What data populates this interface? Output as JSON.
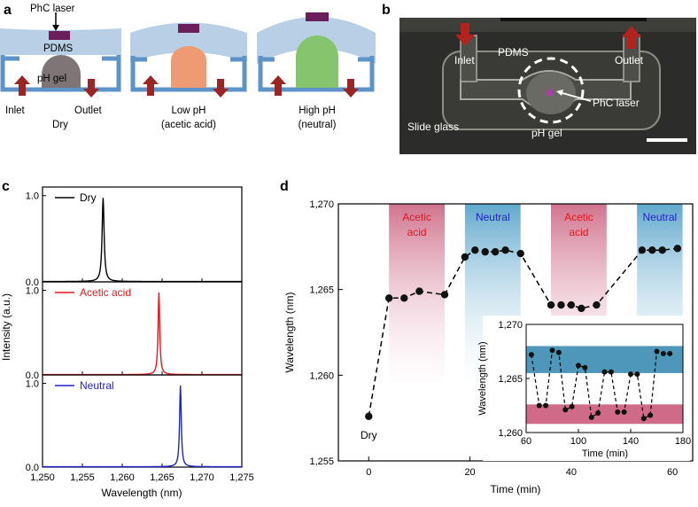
{
  "figure": {
    "panel_a": {
      "letter": "a",
      "labels": {
        "laser": "PhC laser",
        "pdms": "PDMS",
        "gel": "pH gel",
        "inlet": "Inlet",
        "outlet": "Outlet"
      },
      "states": [
        {
          "line1": "Dry",
          "line2": ""
        },
        {
          "line1": "Low pH",
          "line2": "(acetic acid)"
        },
        {
          "line1": "High pH",
          "line2": "(neutral)"
        }
      ],
      "colors": {
        "pdms": "#b9cfe6",
        "frame": "#5e93c9",
        "gel_dry": "#7f7577",
        "gel_low": "#ee9a72",
        "gel_high": "#86c46d",
        "laser": "#6a1f5c",
        "arrow": "#9b2424"
      }
    },
    "panel_b": {
      "letter": "b",
      "labels": {
        "inlet": "Inlet",
        "pdms": "PDMS",
        "outlet": "Outlet",
        "laser": "PhC laser",
        "slide": "Slide glass",
        "gel": "pH gel"
      }
    },
    "panel_c": {
      "letter": "c"
    },
    "panel_d": {
      "letter": "d"
    }
  },
  "chart_data": [
    {
      "type": "line",
      "panel": "c",
      "xlabel": "Wavelength (nm)",
      "ylabel": "Intensity (a.u.)",
      "xlim": [
        1250,
        1275
      ],
      "xticks": [
        1250,
        1255,
        1260,
        1265,
        1270,
        1275
      ],
      "xtick_labels": [
        "1,250",
        "1,255",
        "1,260",
        "1,265",
        "1,270",
        "1,275"
      ],
      "ytick_labels": [
        "0.0",
        "1.0"
      ],
      "subplots": [
        {
          "name": "Dry",
          "color": "#000000",
          "peak": 1257.6,
          "fwhm": 0.3,
          "ylim": [
            0,
            1.1
          ]
        },
        {
          "name": "Acetic acid",
          "color": "#e8161b",
          "peak": 1264.6,
          "fwhm": 0.25,
          "ylim": [
            0,
            1.1
          ]
        },
        {
          "name": "Neutral",
          "color": "#1f23c6",
          "peak": 1267.3,
          "fwhm": 0.25,
          "ylim": [
            0,
            1.1
          ]
        }
      ]
    },
    {
      "type": "line",
      "panel": "d",
      "xlabel": "Time (min)",
      "ylabel": "Wavelength (nm)",
      "xlim": [
        -6,
        64
      ],
      "ylim": [
        1255,
        1270
      ],
      "xticks": [
        0,
        20,
        40,
        60
      ],
      "xtick_labels": [
        "0",
        "20",
        "40",
        "60"
      ],
      "yticks": [
        1255,
        1260,
        1265,
        1270
      ],
      "ytick_labels": [
        "1,255",
        "1,260",
        "1,265",
        "1,270"
      ],
      "annotation": "Dry",
      "bands": [
        {
          "label_1": "Acetic",
          "label_2": "acid",
          "x": [
            4,
            15
          ],
          "kind": "acid"
        },
        {
          "label_1": "Neutral",
          "label_2": "",
          "x": [
            19,
            30
          ],
          "kind": "neutral"
        },
        {
          "label_1": "Acetic",
          "label_2": "acid",
          "x": [
            36,
            47
          ],
          "kind": "acid"
        },
        {
          "label_1": "Neutral",
          "label_2": "",
          "x": [
            53,
            62
          ],
          "kind": "neutral"
        }
      ],
      "series": [
        {
          "name": "PhC laser wavelength",
          "x": [
            0,
            4,
            7,
            10,
            15,
            19,
            21,
            23,
            25,
            27,
            30,
            36,
            38,
            40,
            42,
            45,
            54,
            56,
            58,
            61
          ],
          "y": [
            1257.6,
            1264.5,
            1264.5,
            1264.9,
            1264.7,
            1266.9,
            1267.3,
            1267.2,
            1267.2,
            1267.3,
            1267.1,
            1264.1,
            1264.1,
            1264.1,
            1263.9,
            1264.1,
            1267.3,
            1267.3,
            1267.3,
            1267.4
          ]
        }
      ],
      "inset": {
        "xlabel": "Time (min)",
        "ylabel": "Wavelength (nm)",
        "xlim": [
          60,
          180
        ],
        "ylim": [
          1260,
          1270
        ],
        "xticks": [
          60,
          100,
          140,
          180
        ],
        "xtick_labels": [
          "60",
          "100",
          "140",
          "180"
        ],
        "yticks": [
          1260,
          1265,
          1270
        ],
        "ytick_labels": [
          "1,260",
          "1,265",
          "1,270"
        ],
        "neutral_band": [
          1265.5,
          1268
        ],
        "acid_band": [
          1260.8,
          1262.6
        ],
        "x": [
          64,
          70,
          75,
          80,
          85,
          90,
          95,
          100,
          105,
          110,
          115,
          120,
          125,
          130,
          135,
          140,
          145,
          150,
          155,
          160,
          165,
          170
        ],
        "y": [
          1267.2,
          1262.5,
          1262.5,
          1267.6,
          1267.4,
          1262.1,
          1262.4,
          1266.2,
          1266.0,
          1261.4,
          1261.8,
          1265.6,
          1265.6,
          1261.9,
          1261.9,
          1265.4,
          1265.4,
          1261.3,
          1261.6,
          1267.5,
          1267.3,
          1267.3
        ]
      }
    }
  ]
}
